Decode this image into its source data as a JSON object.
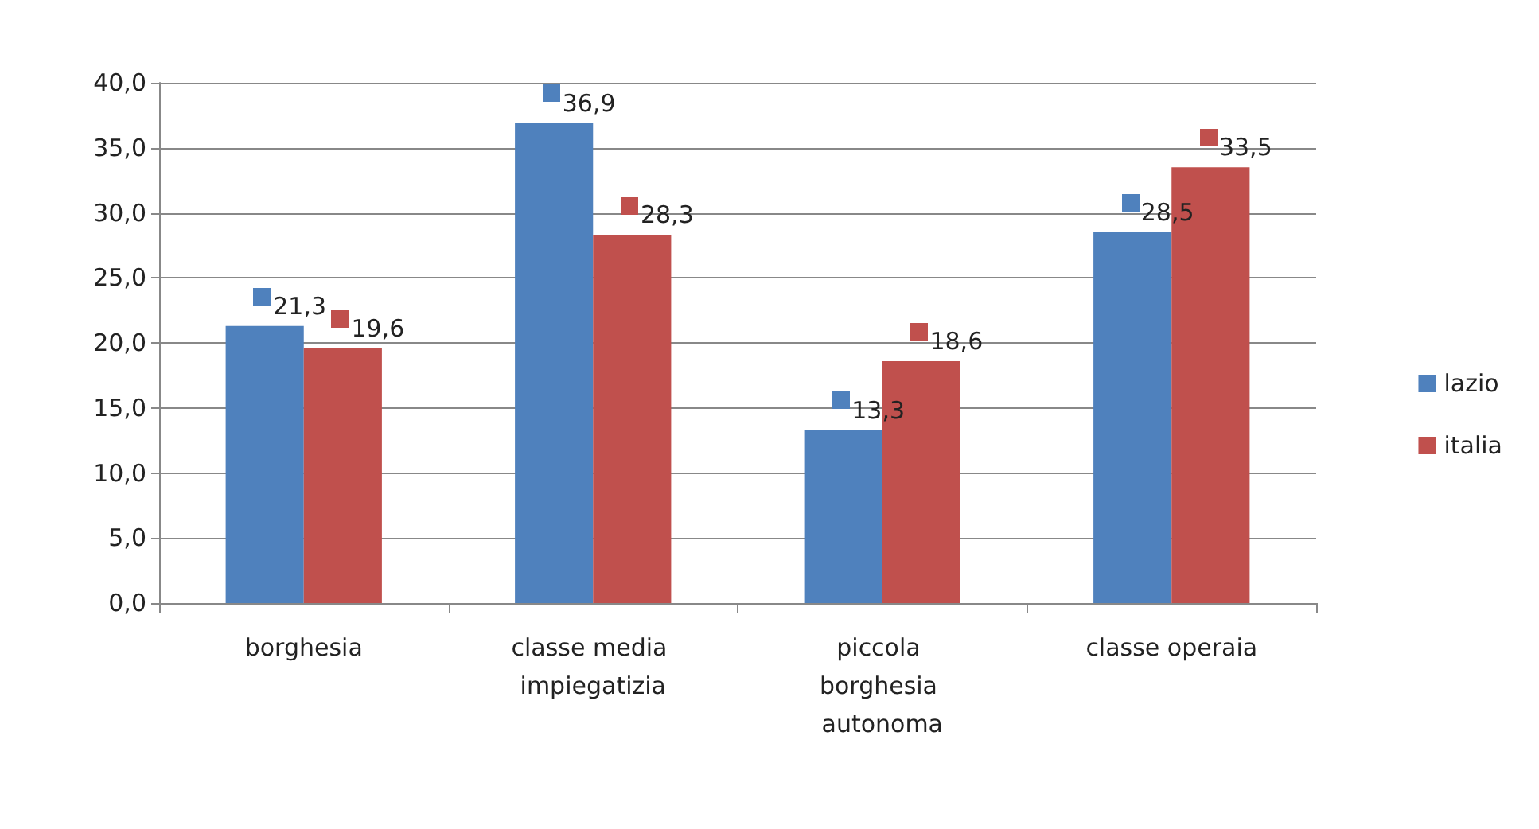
{
  "chart_data": {
    "type": "bar",
    "categories": [
      "borghesia",
      "classe media impiegatizia",
      "piccola borghesia autonoma",
      "classe operaia"
    ],
    "series": [
      {
        "name": "lazio",
        "color": "#4f81bd",
        "values": [
          21.3,
          36.9,
          13.3,
          28.5
        ],
        "value_labels": [
          "21,3",
          "36,9",
          "13,3",
          "28,5"
        ]
      },
      {
        "name": "italia",
        "color": "#c0504d",
        "values": [
          19.6,
          28.3,
          18.6,
          33.5
        ],
        "value_labels": [
          "19,6",
          "28,3",
          "18,6",
          "33,5"
        ]
      }
    ],
    "ylim": [
      0,
      40
    ],
    "yticks": [
      {
        "value": 0,
        "label": "0,0"
      },
      {
        "value": 5,
        "label": "5,0"
      },
      {
        "value": 10,
        "label": "10,0"
      },
      {
        "value": 15,
        "label": "15,0"
      },
      {
        "value": 20,
        "label": "20,0"
      },
      {
        "value": 25,
        "label": "25,0"
      },
      {
        "value": 30,
        "label": "30,0"
      },
      {
        "value": 35,
        "label": "35,0"
      },
      {
        "value": 40,
        "label": "40,0"
      }
    ],
    "grid": "y",
    "legend": "right"
  }
}
